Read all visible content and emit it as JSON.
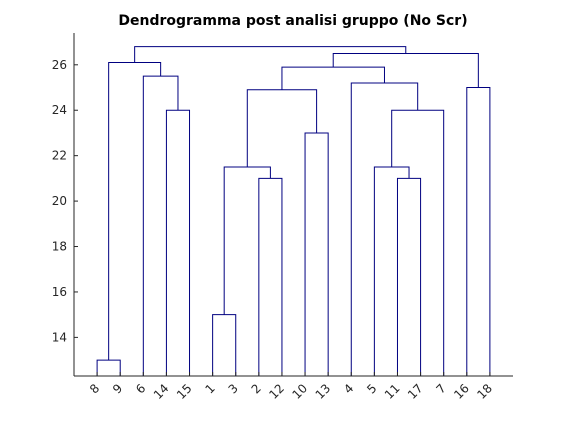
{
  "chart_data": {
    "type": "dendrogram",
    "title": "Dendrogramma post analisi gruppo (No Scr)",
    "xlabel": "",
    "ylabel": "",
    "ylim": [
      12.3,
      27.4
    ],
    "y_ticks": [
      14,
      16,
      18,
      20,
      22,
      24,
      26
    ],
    "leaf_order": [
      "8",
      "9",
      "6",
      "14",
      "15",
      "1",
      "3",
      "2",
      "12",
      "10",
      "13",
      "4",
      "5",
      "11",
      "17",
      "7",
      "16",
      "18"
    ],
    "leaf_baseline": 12.3,
    "merges": [
      {
        "left": "8",
        "right": "9",
        "height": 13.0
      },
      {
        "left": "1",
        "right": "3",
        "height": 15.0
      },
      {
        "left": "2",
        "right": "12",
        "height": 21.0
      },
      {
        "left": "11",
        "right": "17",
        "height": 21.0
      },
      {
        "left": "5",
        "right": "11+17",
        "height": 21.5
      },
      {
        "left": "1+3",
        "right": "2+12",
        "height": 21.5
      },
      {
        "left": "10",
        "right": "13",
        "height": 23.0
      },
      {
        "left": "14",
        "right": "15",
        "height": 24.0
      },
      {
        "left": "5+11+17",
        "right": "7",
        "height": 24.0
      },
      {
        "left": "1+3+2+12",
        "right": "10+13",
        "height": 24.9
      },
      {
        "left": "16",
        "right": "18",
        "height": 25.0
      },
      {
        "left": "4",
        "right": "5+11+17+7",
        "height": 25.2
      },
      {
        "left": "6",
        "right": "14+15",
        "height": 25.5
      },
      {
        "left": "1+3+2+12+10+13",
        "right": "4+5+11+17+7",
        "height": 25.9
      },
      {
        "left": "8+9",
        "right": "6+14+15",
        "height": 26.1
      },
      {
        "left": "1+3+2+12+10+13+4+5+11+17+7",
        "right": "16+18",
        "height": 26.5
      },
      {
        "left": "8+9+6+14+15",
        "right": "1+3+2+12+10+13+4+5+11+17+7+16+18",
        "height": 26.8
      }
    ],
    "grid": false,
    "legend": "none",
    "colors": {
      "links": "#000080",
      "axes": "#262626"
    }
  }
}
